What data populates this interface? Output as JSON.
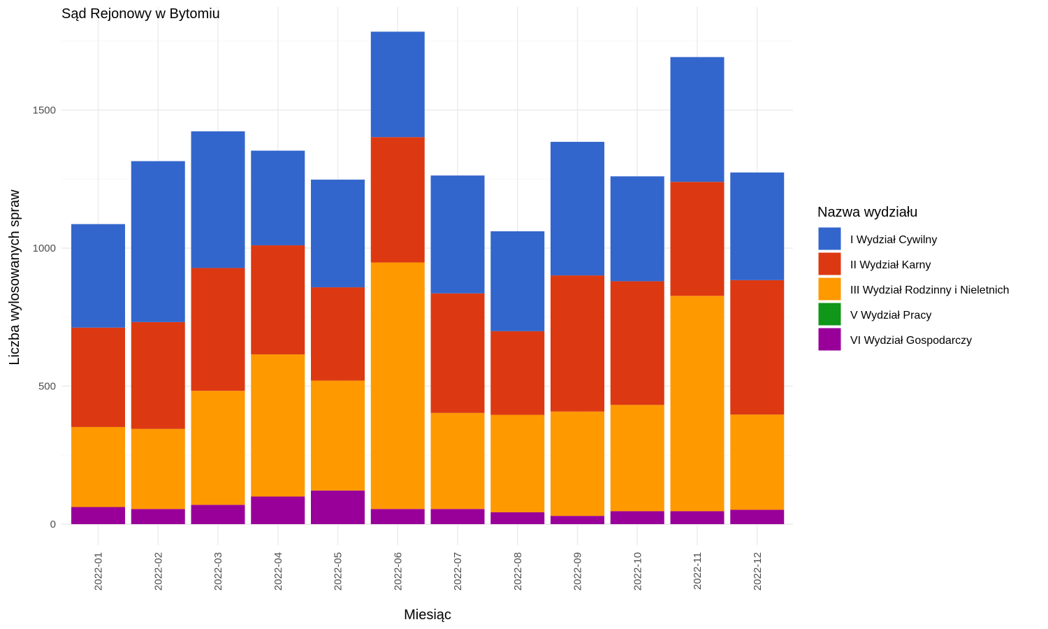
{
  "chart_data": {
    "type": "bar",
    "stacked": true,
    "title": "Sąd Rejonowy w Bytomiu",
    "xlabel": "Miesiąc",
    "ylabel": "Liczba wylosowanych spraw",
    "ylim": [
      0,
      1800
    ],
    "yticks": [
      0,
      500,
      1000,
      1500
    ],
    "grid": true,
    "legend_position": "right",
    "legend_title": "Nazwa wydziału",
    "categories": [
      "2022-01",
      "2022-02",
      "2022-03",
      "2022-04",
      "2022-05",
      "2022-06",
      "2022-07",
      "2022-08",
      "2022-09",
      "2022-10",
      "2022-11",
      "2022-12"
    ],
    "series": [
      {
        "name": "I Wydział Cywilny",
        "color": "#3366CC",
        "values": [
          375,
          583,
          495,
          343,
          390,
          382,
          427,
          362,
          484,
          380,
          452,
          390
        ]
      },
      {
        "name": "II Wydział Karny",
        "color": "#DC3912",
        "values": [
          360,
          387,
          445,
          395,
          338,
          454,
          433,
          303,
          493,
          448,
          413,
          487
        ]
      },
      {
        "name": "III Wydział Rodzinny i Nieletnich",
        "color": "#FF9900",
        "values": [
          290,
          290,
          413,
          515,
          398,
          893,
          348,
          353,
          378,
          385,
          780,
          345
        ]
      },
      {
        "name": "V Wydział Pracy",
        "color": "#109618",
        "values": [
          0,
          0,
          0,
          0,
          0,
          0,
          0,
          0,
          0,
          0,
          0,
          0
        ]
      },
      {
        "name": "VI Wydział Gospodarczy",
        "color": "#990099",
        "values": [
          62,
          55,
          70,
          100,
          122,
          55,
          55,
          43,
          30,
          47,
          47,
          52
        ]
      }
    ]
  }
}
